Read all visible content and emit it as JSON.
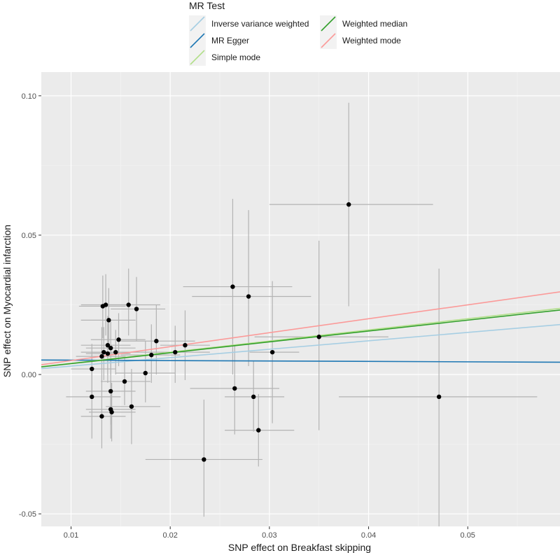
{
  "chart_data": {
    "type": "scatter",
    "xlabel": "SNP effect on Breakfast skipping",
    "ylabel": "SNP effect on Myocardial infarction",
    "xlim": [
      0.007,
      0.0593
    ],
    "ylim": [
      -0.0545,
      0.1085
    ],
    "x_ticks": [
      0.01,
      0.02,
      0.03,
      0.04,
      0.05
    ],
    "x_tick_labels": [
      "0.01",
      "0.02",
      "0.03",
      "0.04",
      "0.05"
    ],
    "y_ticks": [
      -0.05,
      0.0,
      0.05,
      0.1
    ],
    "y_tick_labels": [
      "-0.05",
      "0.00",
      "0.05",
      "0.10"
    ],
    "grid": true,
    "legend": {
      "title": "MR Test",
      "position": "top",
      "entries": [
        {
          "label": "Inverse variance weighted",
          "color": "#a6cee3"
        },
        {
          "label": "MR Egger",
          "color": "#1f78b4"
        },
        {
          "label": "Simple mode",
          "color": "#b2df8a"
        },
        {
          "label": "Weighted median",
          "color": "#33a02c"
        },
        {
          "label": "Weighted mode",
          "color": "#fb9a99"
        }
      ]
    },
    "lines": [
      {
        "name": "Inverse variance weighted",
        "color": "#a6cee3",
        "slope": 0.302,
        "intercept": 0.0
      },
      {
        "name": "MR Egger",
        "color": "#1f78b4",
        "slope": -0.015,
        "intercept": 0.0053
      },
      {
        "name": "Simple mode",
        "color": "#b2df8a",
        "slope": 0.4,
        "intercept": 0.0
      },
      {
        "name": "Weighted median",
        "color": "#33a02c",
        "slope": 0.39,
        "intercept": 0.0
      },
      {
        "name": "Weighted mode",
        "color": "#fb9a99",
        "slope": 0.5,
        "intercept": 0.0
      }
    ],
    "points": [
      {
        "x": 0.038,
        "y": 0.061,
        "x_lo": 0.03,
        "x_hi": 0.0465,
        "y_lo": 0.0245,
        "y_hi": 0.0975
      },
      {
        "x": 0.0263,
        "y": 0.0315,
        "x_lo": 0.0213,
        "x_hi": 0.0323,
        "y_lo": 0.0,
        "y_hi": 0.063
      },
      {
        "x": 0.0279,
        "y": 0.028,
        "x_lo": 0.0222,
        "x_hi": 0.0342,
        "y_lo": 0.003,
        "y_hi": 0.059
      },
      {
        "x": 0.0303,
        "y": 0.008,
        "x_lo": 0.028,
        "x_hi": 0.033,
        "y_lo": -0.0175,
        "y_hi": 0.0335
      },
      {
        "x": 0.035,
        "y": 0.0135,
        "x_lo": 0.0285,
        "x_hi": 0.042,
        "y_lo": -0.02,
        "y_hi": 0.048
      },
      {
        "x": 0.0471,
        "y": -0.008,
        "x_lo": 0.037,
        "x_hi": 0.057,
        "y_lo": -0.0545,
        "y_hi": 0.038
      },
      {
        "x": 0.0265,
        "y": -0.005,
        "x_lo": 0.022,
        "x_hi": 0.031,
        "y_lo": -0.0215,
        "y_hi": 0.0105
      },
      {
        "x": 0.0284,
        "y": -0.008,
        "x_lo": 0.0255,
        "x_hi": 0.0315,
        "y_lo": -0.0205,
        "y_hi": 0.005
      },
      {
        "x": 0.0289,
        "y": -0.02,
        "x_lo": 0.0255,
        "x_hi": 0.0325,
        "y_lo": -0.033,
        "y_hi": -0.007
      },
      {
        "x": 0.0234,
        "y": -0.0305,
        "x_lo": 0.0175,
        "x_hi": 0.0293,
        "y_lo": -0.051,
        "y_hi": -0.009
      },
      {
        "x": 0.0215,
        "y": 0.0105,
        "x_lo": 0.019,
        "x_hi": 0.024,
        "y_lo": -0.002,
        "y_hi": 0.023
      },
      {
        "x": 0.0205,
        "y": 0.008,
        "x_lo": 0.017,
        "x_hi": 0.024,
        "y_lo": -0.003,
        "y_hi": 0.0175
      },
      {
        "x": 0.0186,
        "y": 0.012,
        "x_lo": 0.015,
        "x_hi": 0.0225,
        "y_lo": 0.0,
        "y_hi": 0.025
      },
      {
        "x": 0.0181,
        "y": 0.007,
        "x_lo": 0.015,
        "x_hi": 0.021,
        "y_lo": -0.003,
        "y_hi": 0.018
      },
      {
        "x": 0.0175,
        "y": 0.0005,
        "x_lo": 0.0145,
        "x_hi": 0.0205,
        "y_lo": -0.01,
        "y_hi": 0.012
      },
      {
        "x": 0.0166,
        "y": 0.0235,
        "x_lo": 0.014,
        "x_hi": 0.0195,
        "y_lo": 0.012,
        "y_hi": 0.035
      },
      {
        "x": 0.0158,
        "y": 0.025,
        "x_lo": 0.013,
        "x_hi": 0.019,
        "y_lo": 0.014,
        "y_hi": 0.038
      },
      {
        "x": 0.0161,
        "y": -0.0115,
        "x_lo": 0.0135,
        "x_hi": 0.019,
        "y_lo": -0.025,
        "y_hi": 0.002
      },
      {
        "x": 0.0154,
        "y": -0.0025,
        "x_lo": 0.013,
        "x_hi": 0.018,
        "y_lo": -0.011,
        "y_hi": 0.006
      },
      {
        "x": 0.0148,
        "y": 0.0125,
        "x_lo": 0.012,
        "x_hi": 0.0175,
        "y_lo": 0.003,
        "y_hi": 0.022
      },
      {
        "x": 0.0145,
        "y": 0.008,
        "x_lo": 0.012,
        "x_hi": 0.017,
        "y_lo": 0.0,
        "y_hi": 0.016
      },
      {
        "x": 0.014,
        "y": 0.0095,
        "x_lo": 0.0115,
        "x_hi": 0.0165,
        "y_lo": 0.0,
        "y_hi": 0.019
      },
      {
        "x": 0.0138,
        "y": 0.0195,
        "x_lo": 0.011,
        "x_hi": 0.0165,
        "y_lo": 0.009,
        "y_hi": 0.031
      },
      {
        "x": 0.0137,
        "y": 0.0105,
        "x_lo": 0.011,
        "x_hi": 0.016,
        "y_lo": 0.0,
        "y_hi": 0.021
      },
      {
        "x": 0.0135,
        "y": 0.025,
        "x_lo": 0.011,
        "x_hi": 0.016,
        "y_lo": 0.014,
        "y_hi": 0.036
      },
      {
        "x": 0.0132,
        "y": 0.0245,
        "x_lo": 0.0108,
        "x_hi": 0.0155,
        "y_lo": 0.013,
        "y_hi": 0.0355
      },
      {
        "x": 0.0133,
        "y": 0.008,
        "x_lo": 0.011,
        "x_hi": 0.016,
        "y_lo": -0.002,
        "y_hi": 0.017
      },
      {
        "x": 0.0137,
        "y": 0.0075,
        "x_lo": 0.0115,
        "x_hi": 0.016,
        "y_lo": -0.003,
        "y_hi": 0.018
      },
      {
        "x": 0.0131,
        "y": 0.0065,
        "x_lo": 0.0105,
        "x_hi": 0.0155,
        "y_lo": -0.004,
        "y_hi": 0.017
      },
      {
        "x": 0.014,
        "y": -0.006,
        "x_lo": 0.0115,
        "x_hi": 0.0165,
        "y_lo": -0.018,
        "y_hi": 0.006
      },
      {
        "x": 0.014,
        "y": -0.0125,
        "x_lo": 0.0115,
        "x_hi": 0.0165,
        "y_lo": -0.023,
        "y_hi": -0.002
      },
      {
        "x": 0.0141,
        "y": -0.0135,
        "x_lo": 0.0118,
        "x_hi": 0.0165,
        "y_lo": -0.024,
        "y_hi": -0.003
      },
      {
        "x": 0.0131,
        "y": -0.015,
        "x_lo": 0.011,
        "x_hi": 0.0155,
        "y_lo": -0.0265,
        "y_hi": -0.004
      },
      {
        "x": 0.0121,
        "y": 0.002,
        "x_lo": 0.01,
        "x_hi": 0.0145,
        "y_lo": -0.007,
        "y_hi": 0.011
      },
      {
        "x": 0.0121,
        "y": -0.008,
        "x_lo": 0.0095,
        "x_hi": 0.015,
        "y_lo": -0.023,
        "y_hi": 0.007
      }
    ]
  }
}
